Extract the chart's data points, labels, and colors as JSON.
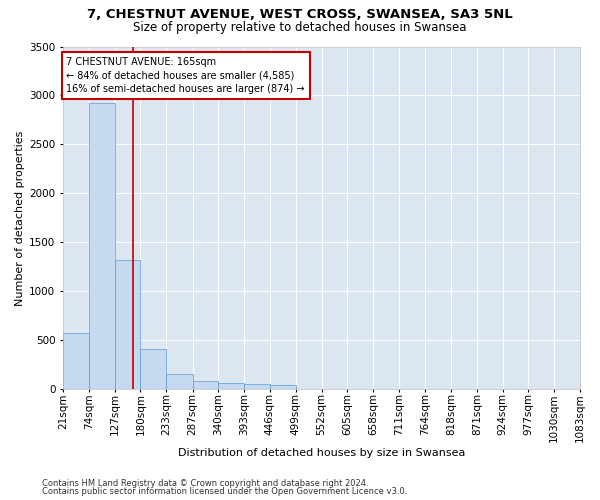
{
  "title_line1": "7, CHESTNUT AVENUE, WEST CROSS, SWANSEA, SA3 5NL",
  "title_line2": "Size of property relative to detached houses in Swansea",
  "xlabel": "Distribution of detached houses by size in Swansea",
  "ylabel": "Number of detached properties",
  "footnote_line1": "Contains HM Land Registry data © Crown copyright and database right 2024.",
  "footnote_line2": "Contains public sector information licensed under the Open Government Licence v3.0.",
  "annotation_line1": "7 CHESTNUT AVENUE: 165sqm",
  "annotation_line2": "← 84% of detached houses are smaller (4,585)",
  "annotation_line3": "16% of semi-detached houses are larger (874) →",
  "bar_color": "#c5d9f0",
  "bar_edge_color": "#5b9bd5",
  "plot_bg_color": "#dce6f1",
  "fig_bg_color": "#ffffff",
  "grid_color": "#ffffff",
  "vline_color": "#c00000",
  "vline_x": 165,
  "bin_edges": [
    21,
    74,
    127,
    180,
    233,
    287,
    340,
    393,
    446,
    499,
    552,
    605,
    658,
    711,
    764,
    818,
    871,
    924,
    977,
    1030,
    1083
  ],
  "bar_heights": [
    570,
    2920,
    1320,
    410,
    155,
    80,
    60,
    50,
    45,
    0,
    0,
    0,
    0,
    0,
    0,
    0,
    0,
    0,
    0,
    0
  ],
  "ylim": [
    0,
    3500
  ],
  "yticks": [
    0,
    500,
    1000,
    1500,
    2000,
    2500,
    3000,
    3500
  ],
  "xlim": [
    21,
    1083
  ],
  "title1_fontsize": 9.5,
  "title2_fontsize": 8.5,
  "tick_fontsize": 7.5,
  "label_fontsize": 8,
  "annotation_fontsize": 7,
  "footnote_fontsize": 6,
  "ylabel_fontsize": 8
}
